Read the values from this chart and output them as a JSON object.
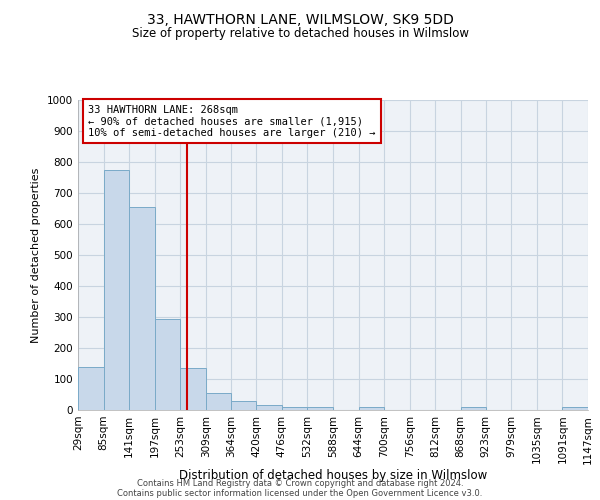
{
  "title": "33, HAWTHORN LANE, WILMSLOW, SK9 5DD",
  "subtitle": "Size of property relative to detached houses in Wilmslow",
  "xlabel": "Distribution of detached houses by size in Wilmslow",
  "ylabel": "Number of detached properties",
  "bar_color": "#c8d8ea",
  "bar_edge_color": "#7aaac8",
  "bg_color": "#eef2f7",
  "grid_color": "#c8d4e0",
  "vline_x": 268,
  "vline_color": "#cc0000",
  "annotation_text": "33 HAWTHORN LANE: 268sqm\n← 90% of detached houses are smaller (1,915)\n10% of semi-detached houses are larger (210) →",
  "annotation_box_color": "#cc0000",
  "bin_edges": [
    29,
    85,
    141,
    197,
    253,
    309,
    364,
    420,
    476,
    532,
    588,
    644,
    700,
    756,
    812,
    868,
    923,
    979,
    1035,
    1091,
    1147
  ],
  "bar_heights": [
    140,
    775,
    655,
    295,
    135,
    55,
    30,
    15,
    10,
    10,
    0,
    10,
    0,
    0,
    0,
    10,
    0,
    0,
    0,
    10
  ],
  "ylim": [
    0,
    1000
  ],
  "yticks": [
    0,
    100,
    200,
    300,
    400,
    500,
    600,
    700,
    800,
    900,
    1000
  ],
  "footer_line1": "Contains HM Land Registry data © Crown copyright and database right 2024.",
  "footer_line2": "Contains public sector information licensed under the Open Government Licence v3.0."
}
